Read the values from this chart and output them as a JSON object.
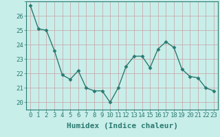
{
  "x": [
    0,
    1,
    2,
    3,
    4,
    5,
    6,
    7,
    8,
    9,
    10,
    11,
    12,
    13,
    14,
    15,
    16,
    17,
    18,
    19,
    20,
    21,
    22,
    23
  ],
  "y": [
    26.7,
    25.1,
    25.0,
    23.6,
    21.9,
    21.6,
    22.2,
    21.0,
    20.8,
    20.8,
    20.0,
    21.0,
    22.5,
    23.2,
    23.2,
    22.4,
    23.7,
    24.2,
    23.8,
    22.3,
    21.8,
    21.7,
    21.0,
    20.8
  ],
  "line_color": "#2a7a6f",
  "marker": "D",
  "marker_size": 2.5,
  "line_width": 1.0,
  "bg_color": "#c8eeea",
  "grid_minor_color": "#a8d8d4",
  "grid_major_color": "#c8a0a0",
  "xlabel": "Humidex (Indice chaleur)",
  "xlabel_fontsize": 8,
  "tick_color": "#2a7a6f",
  "ylabel_ticks": [
    20,
    21,
    22,
    23,
    24,
    25,
    26
  ],
  "ylim": [
    19.5,
    27.0
  ],
  "xlim": [
    -0.5,
    23.5
  ],
  "tick_fontsize": 6.5
}
